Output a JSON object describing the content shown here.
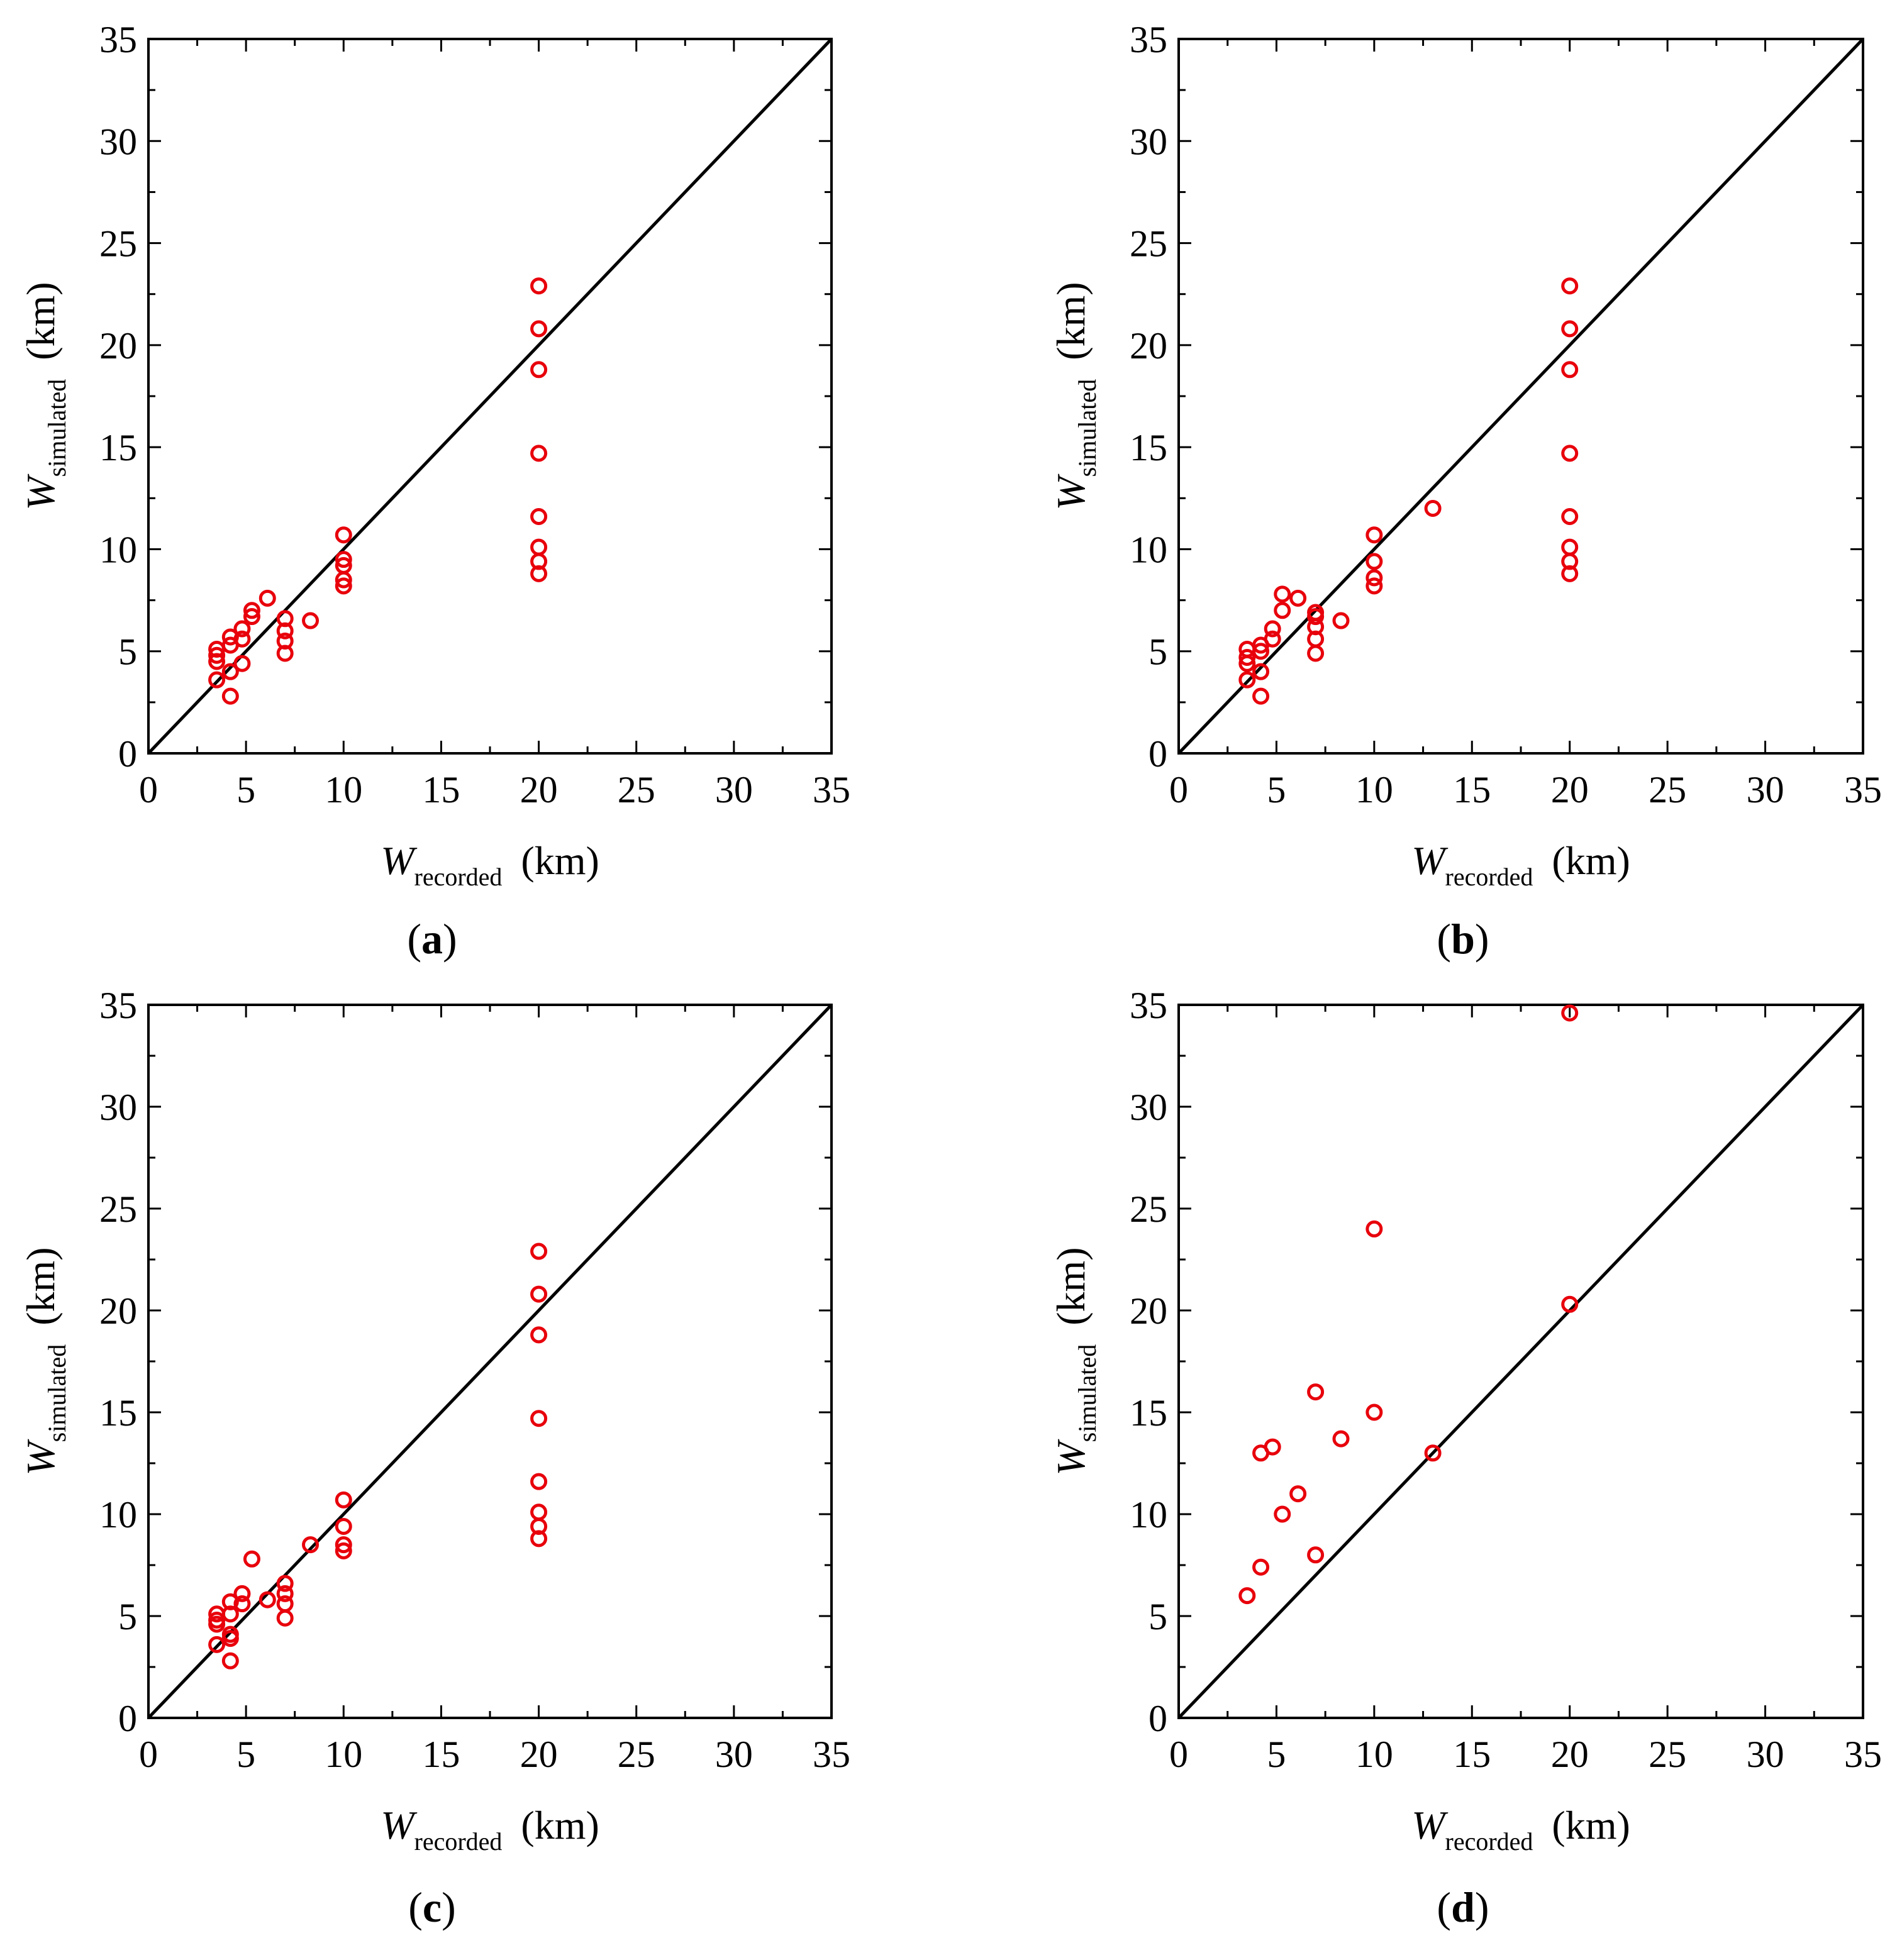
{
  "figure": {
    "panels": [
      {
        "panel_label": "(a)",
        "label_letter": "a",
        "chart_data": {
          "type": "scatter",
          "title": "",
          "xlabel": "W recorded (km)",
          "ylabel": "W simulated (km)",
          "xlabel_main": "W",
          "xlabel_sub": "recorded",
          "xlabel_unit": "(km)",
          "ylabel_main": "W",
          "ylabel_sub": "simulated",
          "ylabel_unit": "(km)",
          "xlim": [
            0,
            35
          ],
          "ylim": [
            0,
            35
          ],
          "xticks": [
            0,
            5,
            10,
            15,
            20,
            25,
            30,
            35
          ],
          "yticks": [
            0,
            5,
            10,
            15,
            20,
            25,
            30,
            35
          ],
          "xtick_labels": [
            "0",
            "5",
            "10",
            "15",
            "20",
            "25",
            "30",
            "35"
          ],
          "ytick_labels": [
            "0",
            "5",
            "10",
            "15",
            "20",
            "25",
            "30",
            "35"
          ],
          "grid": false,
          "reference_line": "y = x",
          "marker_color": "#e8000b",
          "line_color": "#000000",
          "points": [
            [
              3.5,
              5.1
            ],
            [
              3.5,
              4.8
            ],
            [
              3.5,
              4.5
            ],
            [
              3.5,
              3.6
            ],
            [
              4.2,
              5.7
            ],
            [
              4.2,
              5.3
            ],
            [
              4.2,
              4.0
            ],
            [
              4.2,
              2.8
            ],
            [
              4.8,
              6.1
            ],
            [
              4.8,
              5.6
            ],
            [
              4.8,
              4.4
            ],
            [
              5.3,
              7.0
            ],
            [
              5.3,
              6.7
            ],
            [
              6.1,
              7.6
            ],
            [
              7.0,
              6.6
            ],
            [
              7.0,
              6.0
            ],
            [
              7.0,
              5.5
            ],
            [
              7.0,
              4.9
            ],
            [
              8.3,
              6.5
            ],
            [
              10.0,
              10.7
            ],
            [
              10.0,
              9.5
            ],
            [
              10.0,
              9.2
            ],
            [
              10.0,
              8.5
            ],
            [
              10.0,
              8.2
            ],
            [
              20.0,
              22.9
            ],
            [
              20.0,
              20.8
            ],
            [
              20.0,
              18.8
            ],
            [
              20.0,
              14.7
            ],
            [
              20.0,
              11.6
            ],
            [
              20.0,
              10.1
            ],
            [
              20.0,
              9.4
            ],
            [
              20.0,
              8.8
            ]
          ]
        }
      },
      {
        "panel_label": "(b)",
        "label_letter": "b",
        "chart_data": {
          "type": "scatter",
          "title": "",
          "xlabel": "W recorded (km)",
          "ylabel": "W simulated (km)",
          "xlabel_main": "W",
          "xlabel_sub": "recorded",
          "xlabel_unit": "(km)",
          "ylabel_main": "W",
          "ylabel_sub": "simulated",
          "ylabel_unit": "(km)",
          "xlim": [
            0,
            35
          ],
          "ylim": [
            0,
            35
          ],
          "xticks": [
            0,
            5,
            10,
            15,
            20,
            25,
            30,
            35
          ],
          "yticks": [
            0,
            5,
            10,
            15,
            20,
            25,
            30,
            35
          ],
          "xtick_labels": [
            "0",
            "5",
            "10",
            "15",
            "20",
            "25",
            "30",
            "35"
          ],
          "ytick_labels": [
            "0",
            "5",
            "10",
            "15",
            "20",
            "25",
            "30",
            "35"
          ],
          "grid": false,
          "reference_line": "y = x",
          "marker_color": "#e8000b",
          "line_color": "#000000",
          "points": [
            [
              3.5,
              5.1
            ],
            [
              3.5,
              4.7
            ],
            [
              3.5,
              4.4
            ],
            [
              3.5,
              3.6
            ],
            [
              4.2,
              5.3
            ],
            [
              4.2,
              5.0
            ],
            [
              4.2,
              4.0
            ],
            [
              4.2,
              2.8
            ],
            [
              4.8,
              6.1
            ],
            [
              4.8,
              5.6
            ],
            [
              5.3,
              7.8
            ],
            [
              5.3,
              7.0
            ],
            [
              6.1,
              7.6
            ],
            [
              7.0,
              6.9
            ],
            [
              7.0,
              6.7
            ],
            [
              7.0,
              6.2
            ],
            [
              7.0,
              5.6
            ],
            [
              7.0,
              4.9
            ],
            [
              8.3,
              6.5
            ],
            [
              10.0,
              10.7
            ],
            [
              10.0,
              9.4
            ],
            [
              10.0,
              8.6
            ],
            [
              10.0,
              8.2
            ],
            [
              13.0,
              12.0
            ],
            [
              20.0,
              22.9
            ],
            [
              20.0,
              20.8
            ],
            [
              20.0,
              18.8
            ],
            [
              20.0,
              14.7
            ],
            [
              20.0,
              11.6
            ],
            [
              20.0,
              10.1
            ],
            [
              20.0,
              9.4
            ],
            [
              20.0,
              8.8
            ]
          ]
        }
      },
      {
        "panel_label": "(c)",
        "label_letter": "c",
        "chart_data": {
          "type": "scatter",
          "title": "",
          "xlabel": "W recorded (km)",
          "ylabel": "W simulated (km)",
          "xlabel_main": "W",
          "xlabel_sub": "recorded",
          "xlabel_unit": "(km)",
          "ylabel_main": "W",
          "ylabel_sub": "simulated",
          "ylabel_unit": "(km)",
          "xlim": [
            0,
            35
          ],
          "ylim": [
            0,
            35
          ],
          "xticks": [
            0,
            5,
            10,
            15,
            20,
            25,
            30,
            35
          ],
          "yticks": [
            0,
            5,
            10,
            15,
            20,
            25,
            30,
            35
          ],
          "xtick_labels": [
            "0",
            "5",
            "10",
            "15",
            "20",
            "25",
            "30",
            "35"
          ],
          "ytick_labels": [
            "0",
            "5",
            "10",
            "15",
            "20",
            "25",
            "30",
            "35"
          ],
          "grid": false,
          "reference_line": "y = x",
          "marker_color": "#e8000b",
          "line_color": "#000000",
          "points": [
            [
              3.5,
              5.1
            ],
            [
              3.5,
              4.8
            ],
            [
              3.5,
              4.6
            ],
            [
              3.5,
              3.6
            ],
            [
              4.2,
              5.7
            ],
            [
              4.2,
              5.1
            ],
            [
              4.2,
              4.1
            ],
            [
              4.2,
              3.9
            ],
            [
              4.2,
              2.8
            ],
            [
              4.8,
              6.1
            ],
            [
              4.8,
              5.6
            ],
            [
              5.3,
              7.8
            ],
            [
              6.1,
              5.8
            ],
            [
              7.0,
              6.6
            ],
            [
              7.0,
              6.1
            ],
            [
              7.0,
              5.6
            ],
            [
              7.0,
              4.9
            ],
            [
              8.3,
              8.5
            ],
            [
              10.0,
              10.7
            ],
            [
              10.0,
              9.4
            ],
            [
              10.0,
              8.5
            ],
            [
              10.0,
              8.2
            ],
            [
              20.0,
              22.9
            ],
            [
              20.0,
              20.8
            ],
            [
              20.0,
              18.8
            ],
            [
              20.0,
              14.7
            ],
            [
              20.0,
              11.6
            ],
            [
              20.0,
              10.1
            ],
            [
              20.0,
              9.4
            ],
            [
              20.0,
              8.8
            ]
          ]
        }
      },
      {
        "panel_label": "(d)",
        "label_letter": "d",
        "chart_data": {
          "type": "scatter",
          "title": "",
          "xlabel": "W recorded (km)",
          "ylabel": "W simulated (km)",
          "xlabel_main": "W",
          "xlabel_sub": "recorded",
          "xlabel_unit": "(km)",
          "ylabel_main": "W",
          "ylabel_sub": "simulated",
          "ylabel_unit": "(km)",
          "xlim": [
            0,
            35
          ],
          "ylim": [
            0,
            35
          ],
          "xticks": [
            0,
            5,
            10,
            15,
            20,
            25,
            30,
            35
          ],
          "yticks": [
            0,
            5,
            10,
            15,
            20,
            25,
            30,
            35
          ],
          "xtick_labels": [
            "0",
            "5",
            "10",
            "15",
            "20",
            "25",
            "30",
            "35"
          ],
          "ytick_labels": [
            "0",
            "5",
            "10",
            "15",
            "20",
            "25",
            "30",
            "35"
          ],
          "grid": false,
          "reference_line": "y = x",
          "marker_color": "#e8000b",
          "line_color": "#000000",
          "points": [
            [
              3.5,
              6.0
            ],
            [
              4.2,
              7.4
            ],
            [
              4.2,
              13.0
            ],
            [
              4.8,
              13.3
            ],
            [
              5.3,
              10.0
            ],
            [
              6.1,
              11.0
            ],
            [
              7.0,
              8.0
            ],
            [
              7.0,
              16.0
            ],
            [
              8.3,
              13.7
            ],
            [
              10.0,
              15.0
            ],
            [
              10.0,
              24.0
            ],
            [
              13.0,
              13.0
            ],
            [
              20.0,
              20.3
            ],
            [
              20.0,
              34.6
            ]
          ]
        }
      }
    ]
  }
}
